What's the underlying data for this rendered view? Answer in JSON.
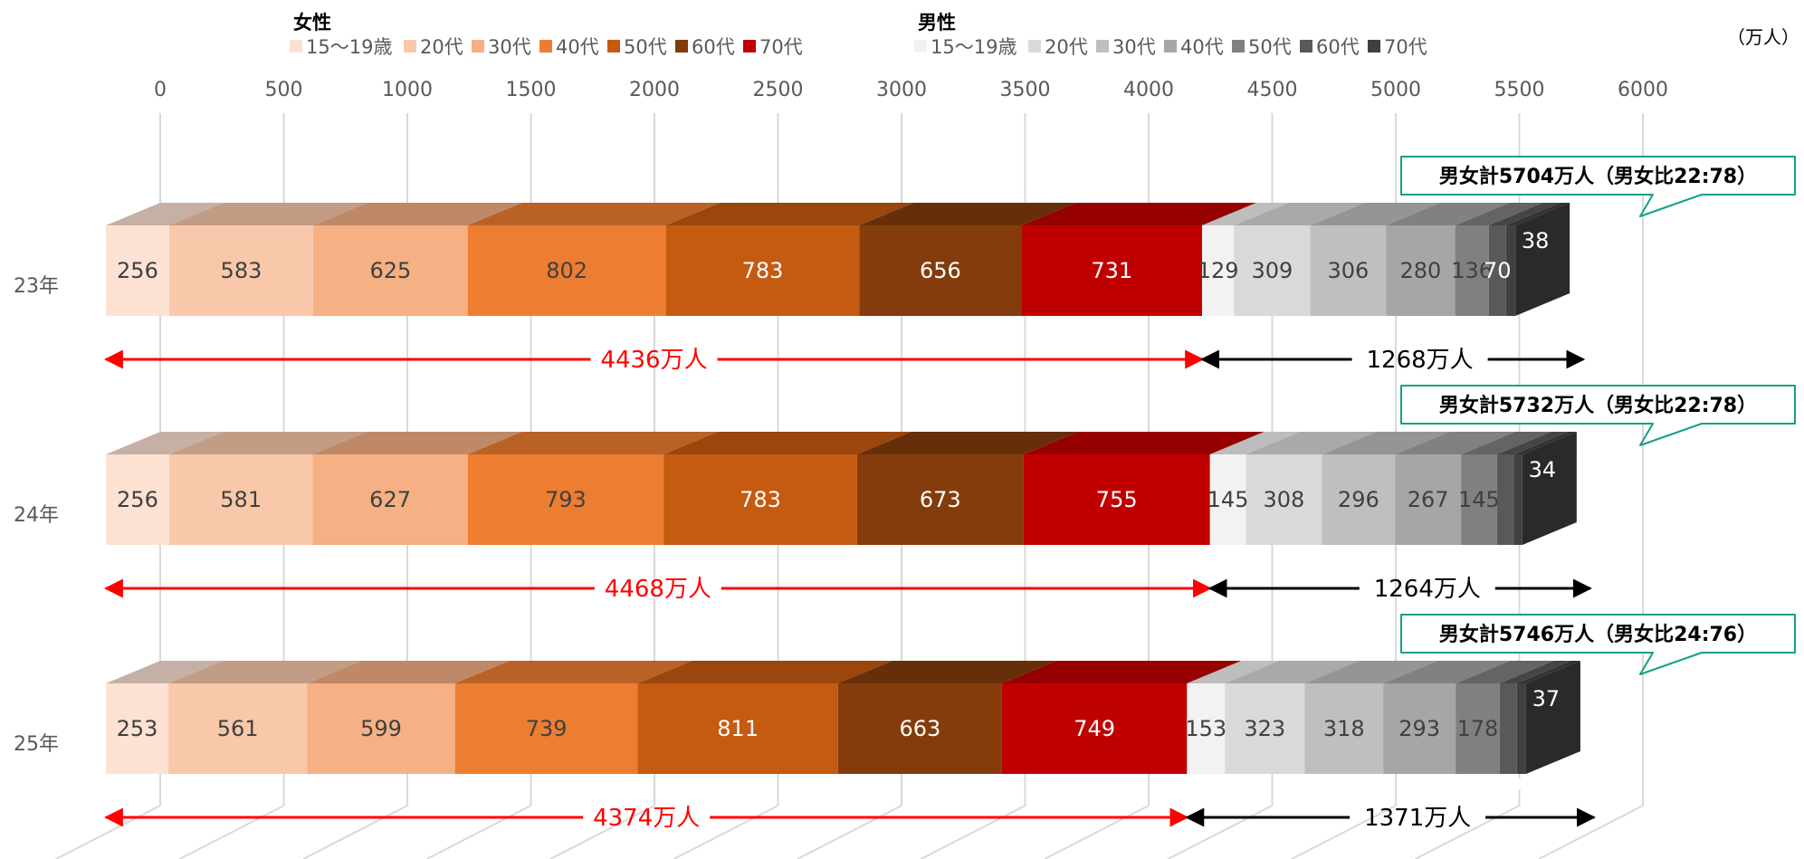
{
  "chart_data": {
    "type": "bar",
    "orientation": "horizontal",
    "stacked": true,
    "style": "3d",
    "unit": "（万人）",
    "categories": [
      "23年",
      "24年",
      "25年"
    ],
    "legend_groups": [
      {
        "label": "女性",
        "items": [
          "15～19歳",
          "20代",
          "30代",
          "40代",
          "50代",
          "60代",
          "70代"
        ]
      },
      {
        "label": "男性",
        "items": [
          "15～19歳",
          "20代",
          "30代",
          "40代",
          "50代",
          "60代",
          "70代"
        ]
      }
    ],
    "xlim": [
      0,
      6000
    ],
    "xticks": [
      0,
      500,
      1000,
      1500,
      2000,
      2500,
      3000,
      3500,
      4000,
      4500,
      5000,
      5500,
      6000
    ],
    "grid": true,
    "legend_position": "top",
    "colors": [
      "#FDE2D4",
      "#F9C8AA",
      "#F5B084",
      "#ED7D31",
      "#C55A11",
      "#843C0C",
      "#C00000",
      "#F2F2F2",
      "#D9D9D9",
      "#BFBFBF",
      "#A6A6A6",
      "#808080",
      "#595959",
      "#404040"
    ],
    "series": [
      {
        "group": "女性",
        "name": "15～19歳",
        "values": [
          256,
          256,
          253
        ]
      },
      {
        "group": "女性",
        "name": "20代",
        "values": [
          583,
          581,
          561
        ]
      },
      {
        "group": "女性",
        "name": "30代",
        "values": [
          625,
          627,
          599
        ]
      },
      {
        "group": "女性",
        "name": "40代",
        "values": [
          802,
          793,
          739
        ]
      },
      {
        "group": "女性",
        "name": "50代",
        "values": [
          783,
          783,
          811
        ]
      },
      {
        "group": "女性",
        "name": "60代",
        "values": [
          656,
          673,
          663
        ]
      },
      {
        "group": "女性",
        "name": "70代",
        "values": [
          731,
          755,
          749
        ]
      },
      {
        "group": "男性",
        "name": "15～19歳",
        "values": [
          129,
          145,
          153
        ]
      },
      {
        "group": "男性",
        "name": "20代",
        "values": [
          309,
          308,
          323
        ]
      },
      {
        "group": "男性",
        "name": "30代",
        "values": [
          306,
          296,
          318
        ]
      },
      {
        "group": "男性",
        "name": "40代",
        "values": [
          280,
          267,
          293
        ]
      },
      {
        "group": "男性",
        "name": "50代",
        "values": [
          136,
          145,
          178
        ]
      },
      {
        "group": "男性",
        "name": "60代",
        "values": [
          70,
          69,
          70
        ]
      },
      {
        "group": "男性",
        "name": "70代",
        "values": [
          38,
          34,
          37
        ]
      }
    ],
    "female_totals": [
      "4436万人",
      "4468万人",
      "4374万人"
    ],
    "male_totals": [
      "1268万人",
      "1264万人",
      "1371万人"
    ],
    "callouts": [
      "男女計5704万人（男女比22:78）",
      "男女計5732万人（男女比22:78）",
      "男女計5746万人（男女比24:76）"
    ]
  }
}
